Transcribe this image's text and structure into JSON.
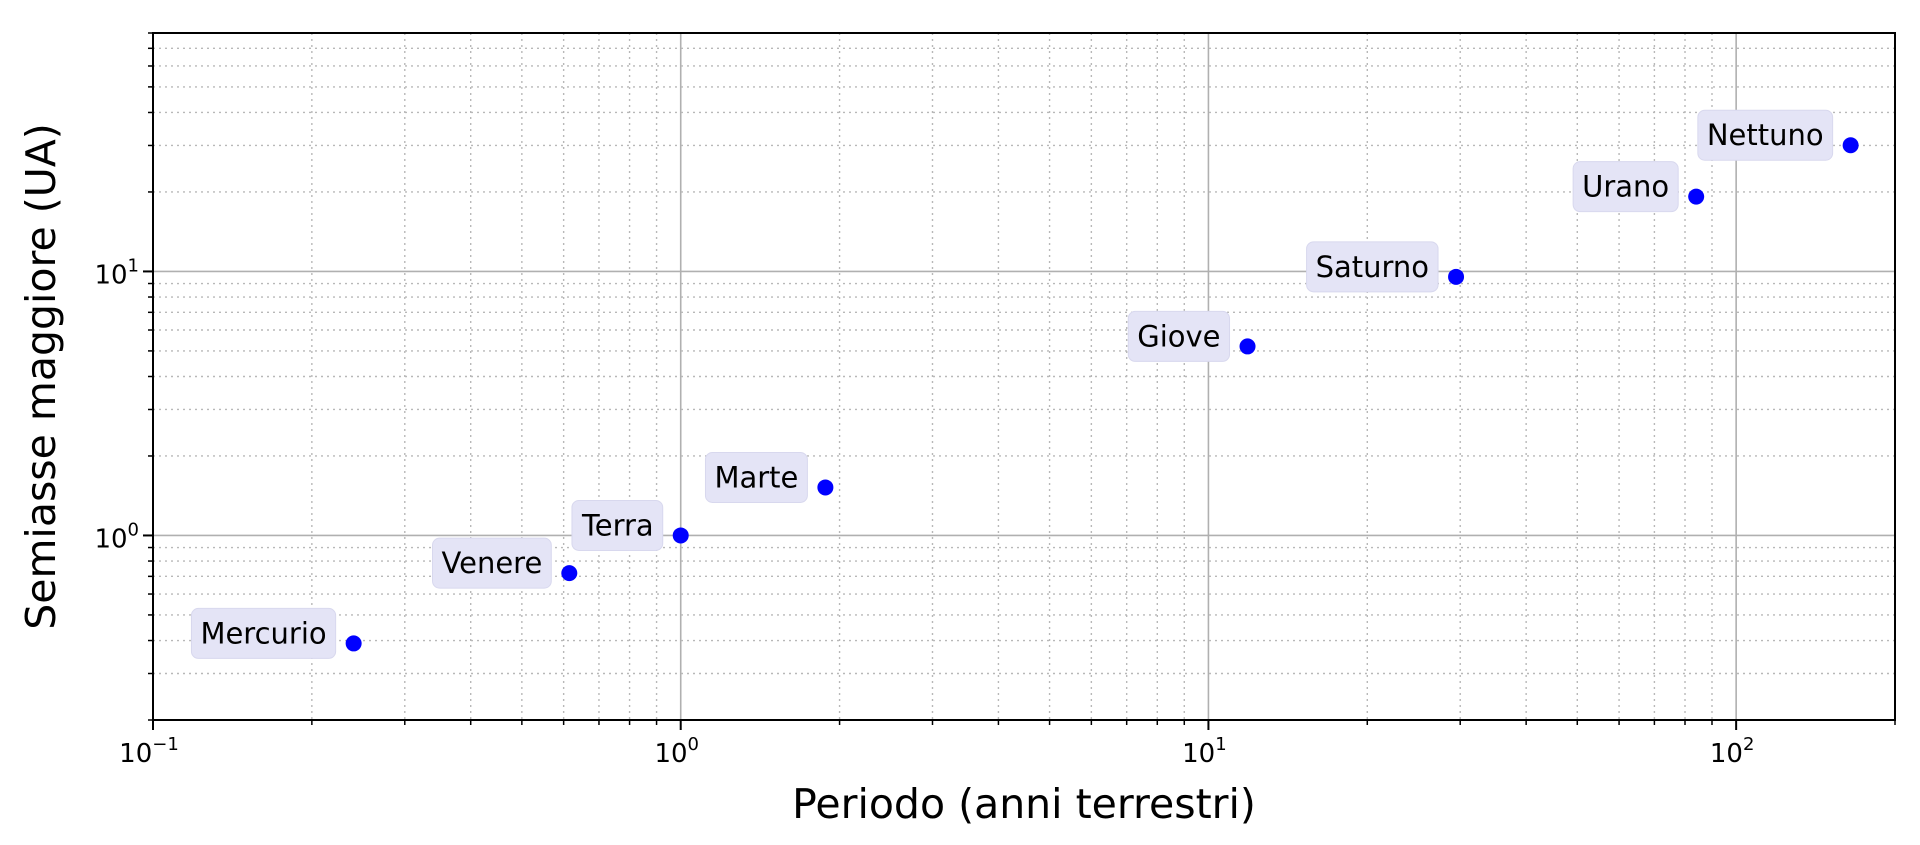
{
  "chart_data": {
    "type": "scatter",
    "xlabel": "Periodo (anni terrestri)",
    "ylabel": "Semiasse maggiore (UA)",
    "xscale": "log",
    "yscale": "log",
    "xlim": [
      0.1,
      200
    ],
    "ylim": [
      0.2,
      80
    ],
    "grid": "major solid, minor dotted",
    "marker_color": "#0000ff",
    "label_background": "#e4e4f6",
    "x_ticks": [
      {
        "base": "10",
        "exp": "−1",
        "value": 0.1
      },
      {
        "base": "10",
        "exp": "0",
        "value": 1
      },
      {
        "base": "10",
        "exp": "1",
        "value": 10
      },
      {
        "base": "10",
        "exp": "2",
        "value": 100
      }
    ],
    "y_ticks": [
      {
        "base": "10",
        "exp": "0",
        "value": 1
      },
      {
        "base": "10",
        "exp": "1",
        "value": 10
      }
    ],
    "points": [
      {
        "label": "Mercurio",
        "x": 0.24,
        "y": 0.39
      },
      {
        "label": "Venere",
        "x": 0.615,
        "y": 0.72
      },
      {
        "label": "Terra",
        "x": 1.0,
        "y": 1.0
      },
      {
        "label": "Marte",
        "x": 1.88,
        "y": 1.52
      },
      {
        "label": "Giove",
        "x": 11.86,
        "y": 5.2
      },
      {
        "label": "Saturno",
        "x": 29.46,
        "y": 9.54
      },
      {
        "label": "Urano",
        "x": 84.0,
        "y": 19.2
      },
      {
        "label": "Nettuno",
        "x": 164.8,
        "y": 30.06
      }
    ]
  }
}
